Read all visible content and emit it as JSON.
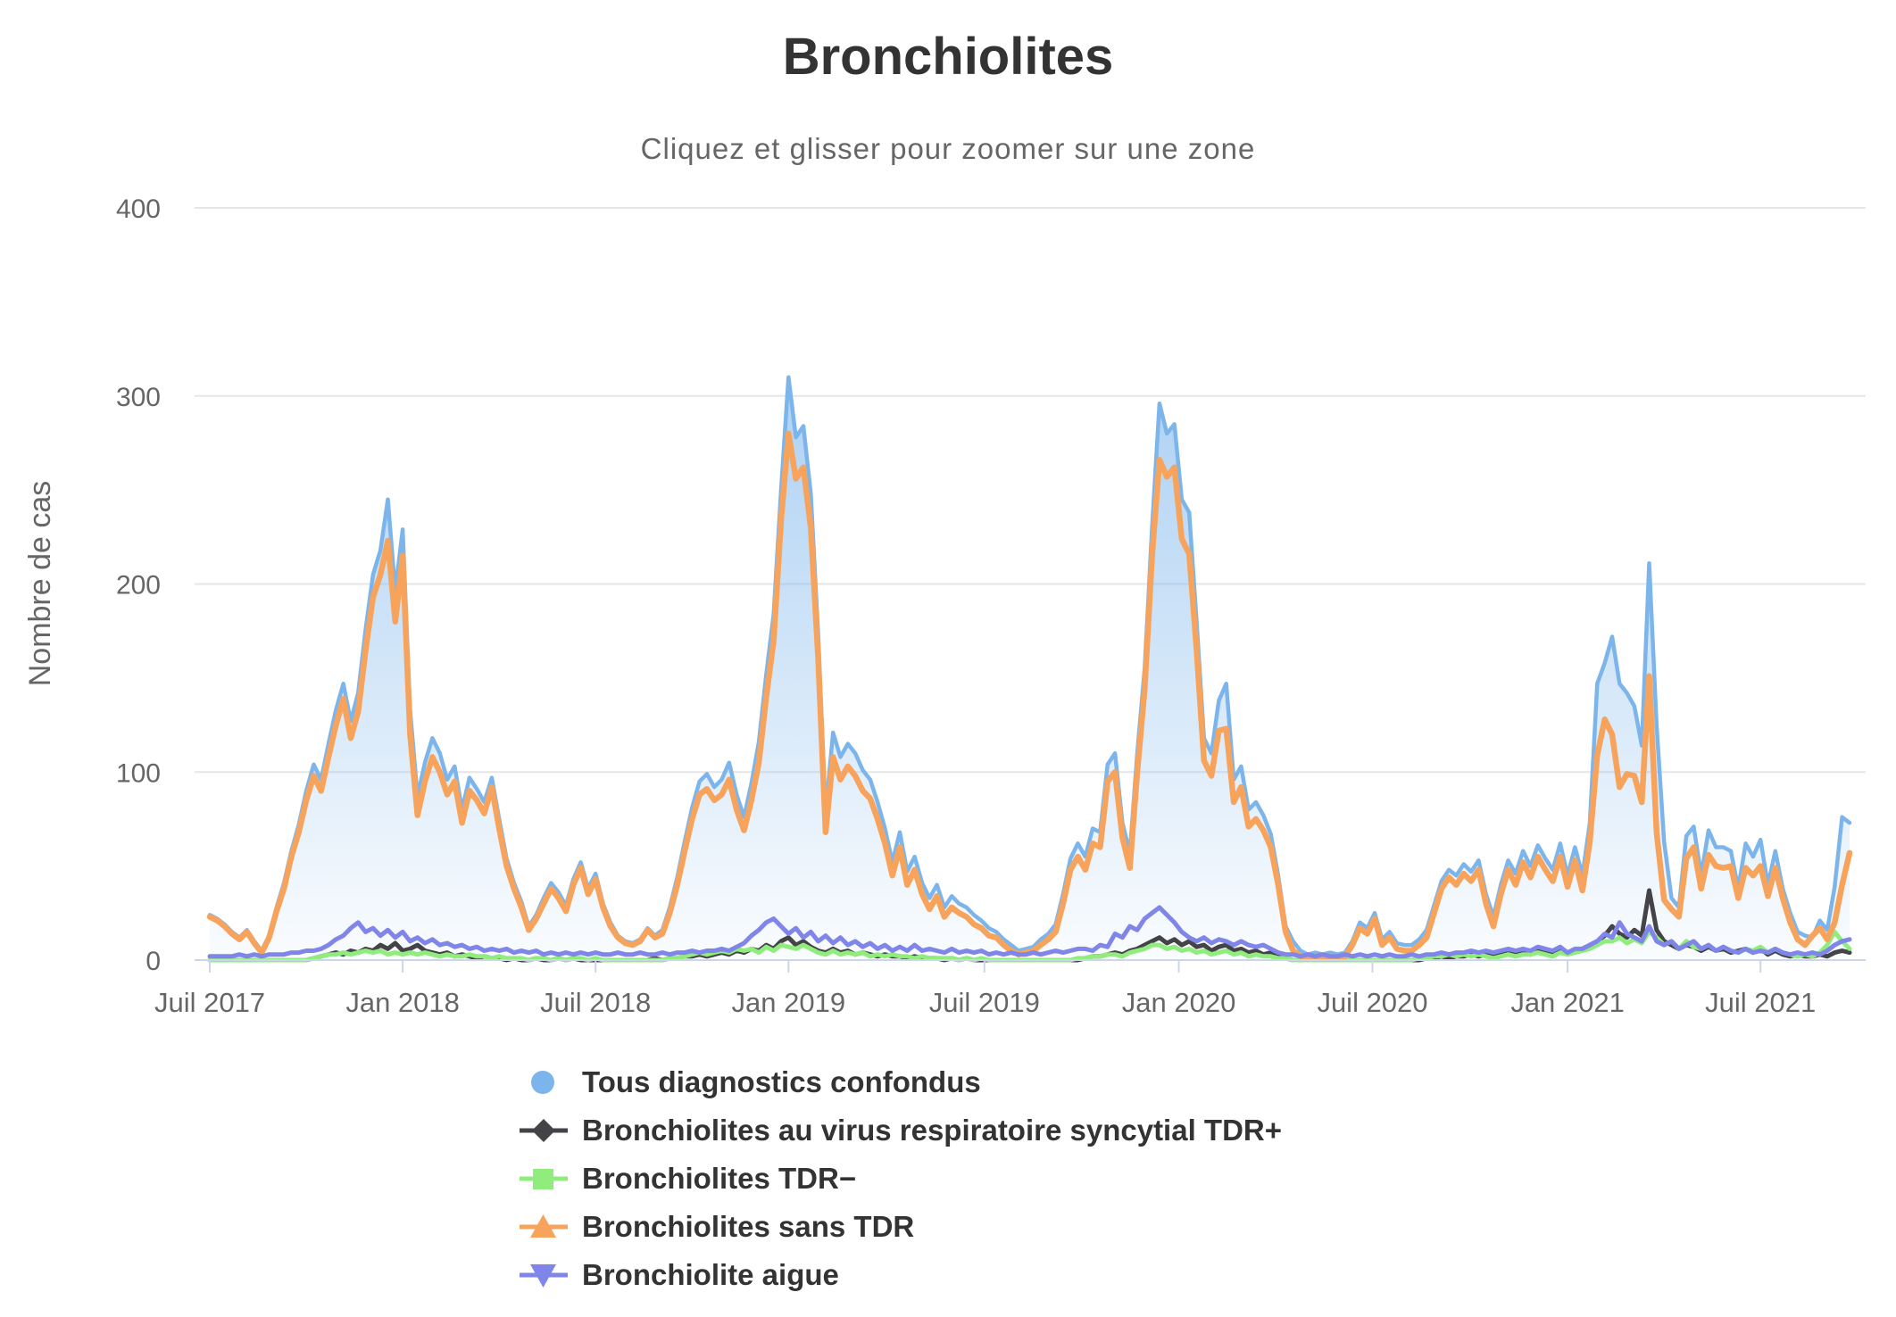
{
  "title": "Bronchiolites",
  "subtitle": "Cliquez et glisser pour zoomer sur une zone",
  "colors": {
    "background": "#ffffff",
    "grid_line": "#e6e6e6",
    "axis_line": "#ccd6eb",
    "title_text": "#333333",
    "subtitle_text": "#666666",
    "axis_text": "#666666",
    "legend_text": "#333333",
    "series_blue": "#7cb5ec",
    "series_dark": "#434348",
    "series_green": "#90ed7d",
    "series_orange": "#f7a35c",
    "series_purple": "#8085e9"
  },
  "y_axis": {
    "title": "Nombre de cas",
    "tick_labels": [
      "0",
      "100",
      "200",
      "300",
      "400"
    ],
    "min": 0,
    "max": 400
  },
  "x_axis": {
    "tick_labels": [
      "Juil 2017",
      "Jan 2018",
      "Juil 2018",
      "Jan 2019",
      "Juil 2019",
      "Jan 2020",
      "Juil 2020",
      "Jan 2021",
      "Juil 2021"
    ]
  },
  "legend": {
    "items": [
      {
        "label": "Tous diagnostics confondus",
        "marker": "circle",
        "color": "#7cb5ec"
      },
      {
        "label": "Bronchiolites au virus respiratoire syncytial TDR+",
        "marker": "diamond",
        "color": "#434348"
      },
      {
        "label": "Bronchiolites TDR−",
        "marker": "square",
        "color": "#90ed7d"
      },
      {
        "label": "Bronchiolites sans TDR",
        "marker": "triangle",
        "color": "#f7a35c"
      },
      {
        "label": "Bronchiolite aigue",
        "marker": "triangle-down",
        "color": "#8085e9"
      }
    ]
  },
  "chart_data": {
    "type": "line",
    "title": "Bronchiolites",
    "subtitle": "Cliquez et glisser pour zoomer sur une zone",
    "ylabel": "Nombre de cas",
    "ylim": [
      0,
      400
    ],
    "y_ticks": [
      0,
      100,
      200,
      300,
      400
    ],
    "grid": "horizontal",
    "legend_position": "bottom-left",
    "x_unit": "week",
    "x_start_label": "Juil 2017",
    "x_end_label": "Oct 2021",
    "x_tick_weeks": [
      0,
      26,
      52,
      78,
      104.4,
      130.6,
      156.7,
      183,
      209
    ],
    "x_tick_labels": [
      "Juil 2017",
      "Jan 2018",
      "Juil 2018",
      "Jan 2019",
      "Juil 2019",
      "Jan 2020",
      "Juil 2020",
      "Jan 2021",
      "Juil 2021"
    ],
    "series": [
      {
        "name": "Tous diagnostics confondus",
        "color": "#7cb5ec",
        "type": "area",
        "marker": "circle",
        "values": [
          24,
          22,
          19,
          15,
          12,
          16,
          10,
          5,
          13,
          28,
          41,
          58,
          72,
          90,
          104,
          96,
          115,
          133,
          147,
          127,
          142,
          176,
          205,
          218,
          245,
          196,
          229,
          133,
          87,
          105,
          118,
          110,
          96,
          103,
          80,
          97,
          91,
          84,
          97,
          75,
          54,
          41,
          31,
          18,
          24,
          33,
          41,
          36,
          29,
          43,
          52,
          38,
          46,
          30,
          20,
          13,
          10,
          9,
          11,
          17,
          13,
          16,
          28,
          44,
          63,
          81,
          95,
          99,
          92,
          96,
          105,
          88,
          76,
          94,
          116,
          152,
          184,
          250,
          310,
          278,
          284,
          248,
          173,
          78,
          121,
          108,
          115,
          110,
          101,
          96,
          84,
          70,
          52,
          68,
          47,
          55,
          41,
          33,
          40,
          28,
          34,
          30,
          28,
          24,
          21,
          17,
          15,
          11,
          8,
          5,
          6,
          7,
          11,
          14,
          19,
          35,
          54,
          62,
          55,
          70,
          68,
          104,
          110,
          73,
          57,
          110,
          155,
          230,
          296,
          280,
          285,
          245,
          238,
          180,
          118,
          110,
          138,
          147,
          96,
          103,
          80,
          84,
          77,
          67,
          45,
          18,
          10,
          5,
          3,
          4,
          3,
          4,
          3,
          4,
          10,
          20,
          17,
          25,
          11,
          15,
          9,
          8,
          8,
          11,
          16,
          29,
          42,
          48,
          45,
          51,
          47,
          53,
          35,
          23,
          40,
          53,
          46,
          58,
          50,
          61,
          54,
          48,
          62,
          45,
          60,
          45,
          73,
          147,
          158,
          172,
          147,
          142,
          135,
          114,
          211,
          125,
          63,
          33,
          28,
          66,
          71,
          45,
          69,
          60,
          60,
          58,
          38,
          62,
          55,
          64,
          40,
          58,
          38,
          25,
          15,
          13,
          12,
          21,
          16,
          39,
          76,
          73
        ]
      },
      {
        "name": "Bronchiolites au virus respiratoire syncytial TDR+",
        "color": "#434348",
        "type": "line",
        "marker": "diamond",
        "values": [
          0,
          0,
          0,
          0,
          0,
          0,
          0,
          0,
          0,
          0,
          0,
          0,
          0,
          0,
          1,
          2,
          3,
          4,
          3,
          5,
          4,
          6,
          5,
          8,
          6,
          9,
          5,
          6,
          8,
          5,
          4,
          3,
          4,
          2,
          3,
          2,
          1,
          2,
          1,
          1,
          0,
          1,
          0,
          0,
          1,
          0,
          0,
          1,
          0,
          1,
          0,
          0,
          0,
          0,
          0,
          0,
          0,
          0,
          0,
          0,
          1,
          0,
          1,
          1,
          2,
          2,
          3,
          2,
          3,
          4,
          3,
          5,
          4,
          6,
          5,
          8,
          6,
          10,
          12,
          8,
          10,
          7,
          5,
          4,
          6,
          4,
          5,
          3,
          4,
          3,
          2,
          3,
          2,
          2,
          1,
          2,
          1,
          1,
          1,
          0,
          1,
          0,
          1,
          0,
          0,
          0,
          0,
          0,
          0,
          0,
          0,
          0,
          0,
          0,
          0,
          0,
          0,
          0,
          1,
          2,
          2,
          3,
          4,
          3,
          5,
          6,
          8,
          10,
          12,
          9,
          11,
          8,
          10,
          7,
          8,
          5,
          7,
          8,
          5,
          6,
          4,
          5,
          3,
          4,
          2,
          1,
          0,
          0,
          0,
          0,
          0,
          0,
          0,
          0,
          0,
          0,
          0,
          0,
          0,
          0,
          0,
          0,
          0,
          0,
          1,
          1,
          2,
          1,
          2,
          2,
          3,
          2,
          3,
          2,
          3,
          4,
          3,
          4,
          3,
          5,
          4,
          3,
          5,
          4,
          5,
          6,
          8,
          10,
          13,
          18,
          14,
          12,
          16,
          13,
          37,
          16,
          10,
          8,
          6,
          8,
          7,
          5,
          7,
          5,
          6,
          4,
          5,
          6,
          4,
          6,
          3,
          5,
          3,
          2,
          3,
          2,
          2,
          3,
          2,
          4,
          5,
          4
        ]
      },
      {
        "name": "Bronchiolites TDR−",
        "color": "#90ed7d",
        "type": "line",
        "marker": "square",
        "values": [
          0,
          0,
          0,
          0,
          0,
          0,
          0,
          0,
          0,
          0,
          0,
          0,
          0,
          0,
          1,
          2,
          3,
          3,
          4,
          3,
          4,
          5,
          4,
          5,
          3,
          4,
          3,
          4,
          3,
          4,
          3,
          2,
          3,
          2,
          2,
          3,
          2,
          2,
          1,
          2,
          1,
          1,
          1,
          0,
          1,
          1,
          0,
          1,
          0,
          1,
          1,
          0,
          1,
          0,
          0,
          0,
          0,
          0,
          0,
          0,
          0,
          0,
          1,
          1,
          2,
          3,
          4,
          3,
          4,
          5,
          4,
          6,
          5,
          6,
          4,
          7,
          5,
          8,
          7,
          6,
          8,
          6,
          4,
          3,
          5,
          3,
          4,
          3,
          4,
          2,
          3,
          2,
          3,
          2,
          2,
          1,
          2,
          1,
          1,
          1,
          1,
          0,
          1,
          0,
          1,
          0,
          0,
          0,
          0,
          0,
          0,
          0,
          0,
          0,
          0,
          0,
          0,
          1,
          1,
          2,
          2,
          3,
          3,
          2,
          4,
          5,
          6,
          8,
          8,
          6,
          7,
          5,
          6,
          4,
          5,
          3,
          4,
          5,
          3,
          4,
          2,
          3,
          2,
          2,
          1,
          1,
          0,
          0,
          0,
          0,
          0,
          0,
          0,
          0,
          0,
          0,
          0,
          0,
          0,
          0,
          0,
          0,
          0,
          1,
          1,
          2,
          2,
          3,
          2,
          3,
          2,
          3,
          2,
          1,
          2,
          3,
          2,
          3,
          3,
          4,
          3,
          2,
          4,
          3,
          4,
          5,
          6,
          8,
          10,
          10,
          12,
          9,
          11,
          9,
          15,
          12,
          8,
          10,
          6,
          10,
          7,
          6,
          8,
          5,
          7,
          5,
          4,
          6,
          5,
          7,
          4,
          6,
          4,
          3,
          2,
          3,
          2,
          4,
          8,
          15,
          10,
          6
        ]
      },
      {
        "name": "Bronchiolites sans TDR",
        "color": "#f7a35c",
        "type": "line",
        "marker": "triangle",
        "values": [
          23,
          21,
          18,
          14,
          11,
          15,
          9,
          4,
          12,
          26,
          38,
          55,
          68,
          85,
          98,
          90,
          108,
          125,
          139,
          118,
          132,
          165,
          193,
          205,
          223,
          180,
          215,
          120,
          77,
          95,
          108,
          100,
          88,
          95,
          73,
          90,
          85,
          78,
          92,
          70,
          50,
          38,
          28,
          16,
          22,
          30,
          38,
          33,
          26,
          40,
          49,
          35,
          43,
          28,
          18,
          12,
          9,
          8,
          10,
          16,
          12,
          14,
          25,
          40,
          58,
          75,
          88,
          91,
          85,
          88,
          96,
          80,
          69,
          85,
          105,
          140,
          170,
          234,
          280,
          256,
          262,
          230,
          160,
          68,
          108,
          96,
          103,
          98,
          90,
          86,
          75,
          62,
          45,
          60,
          40,
          48,
          35,
          27,
          34,
          23,
          28,
          25,
          23,
          19,
          17,
          13,
          12,
          8,
          5,
          3,
          4,
          5,
          8,
          11,
          15,
          30,
          48,
          55,
          48,
          62,
          60,
          95,
          100,
          65,
          49,
          100,
          144,
          215,
          266,
          257,
          262,
          224,
          216,
          165,
          106,
          98,
          122,
          123,
          84,
          92,
          71,
          75,
          69,
          60,
          40,
          15,
          5,
          2,
          1,
          2,
          1,
          2,
          1,
          2,
          8,
          17,
          14,
          22,
          8,
          12,
          6,
          5,
          5,
          8,
          12,
          25,
          38,
          44,
          40,
          46,
          42,
          48,
          30,
          18,
          35,
          48,
          40,
          52,
          44,
          55,
          48,
          42,
          55,
          39,
          53,
          37,
          63,
          109,
          128,
          120,
          92,
          99,
          98,
          84,
          151,
          68,
          32,
          27,
          23,
          54,
          60,
          38,
          56,
          50,
          49,
          50,
          33,
          49,
          45,
          50,
          34,
          49,
          33,
          20,
          11,
          8,
          13,
          17,
          11,
          20,
          40,
          57
        ]
      },
      {
        "name": "Bronchiolite aigue",
        "color": "#8085e9",
        "type": "line",
        "marker": "triangle-down",
        "values": [
          2,
          2,
          2,
          2,
          3,
          2,
          3,
          2,
          3,
          3,
          3,
          4,
          4,
          5,
          5,
          6,
          8,
          11,
          13,
          17,
          20,
          15,
          17,
          13,
          16,
          12,
          15,
          10,
          12,
          9,
          11,
          8,
          9,
          7,
          8,
          6,
          7,
          5,
          6,
          5,
          6,
          4,
          5,
          4,
          5,
          3,
          4,
          3,
          4,
          3,
          4,
          3,
          4,
          3,
          3,
          4,
          3,
          3,
          4,
          3,
          3,
          4,
          3,
          4,
          4,
          5,
          4,
          5,
          5,
          6,
          5,
          7,
          9,
          13,
          16,
          20,
          22,
          18,
          14,
          17,
          12,
          15,
          10,
          13,
          9,
          12,
          8,
          10,
          7,
          9,
          6,
          8,
          5,
          7,
          5,
          8,
          5,
          6,
          5,
          4,
          6,
          4,
          5,
          4,
          5,
          3,
          4,
          3,
          4,
          3,
          3,
          4,
          3,
          4,
          5,
          4,
          5,
          6,
          6,
          5,
          8,
          7,
          14,
          12,
          18,
          16,
          22,
          25,
          28,
          24,
          20,
          15,
          12,
          10,
          12,
          9,
          11,
          10,
          8,
          10,
          8,
          7,
          8,
          6,
          4,
          3,
          3,
          2,
          3,
          2,
          3,
          2,
          2,
          3,
          2,
          3,
          2,
          3,
          2,
          3,
          2,
          2,
          3,
          2,
          3,
          3,
          4,
          3,
          4,
          4,
          5,
          4,
          5,
          4,
          5,
          6,
          5,
          6,
          5,
          7,
          6,
          5,
          7,
          4,
          6,
          6,
          8,
          10,
          14,
          12,
          20,
          14,
          12,
          10,
          18,
          10,
          8,
          10,
          6,
          8,
          10,
          6,
          8,
          5,
          7,
          5,
          4,
          6,
          4,
          5,
          4,
          6,
          4,
          3,
          4,
          3,
          4,
          3,
          5,
          8,
          10,
          11
        ]
      }
    ]
  }
}
